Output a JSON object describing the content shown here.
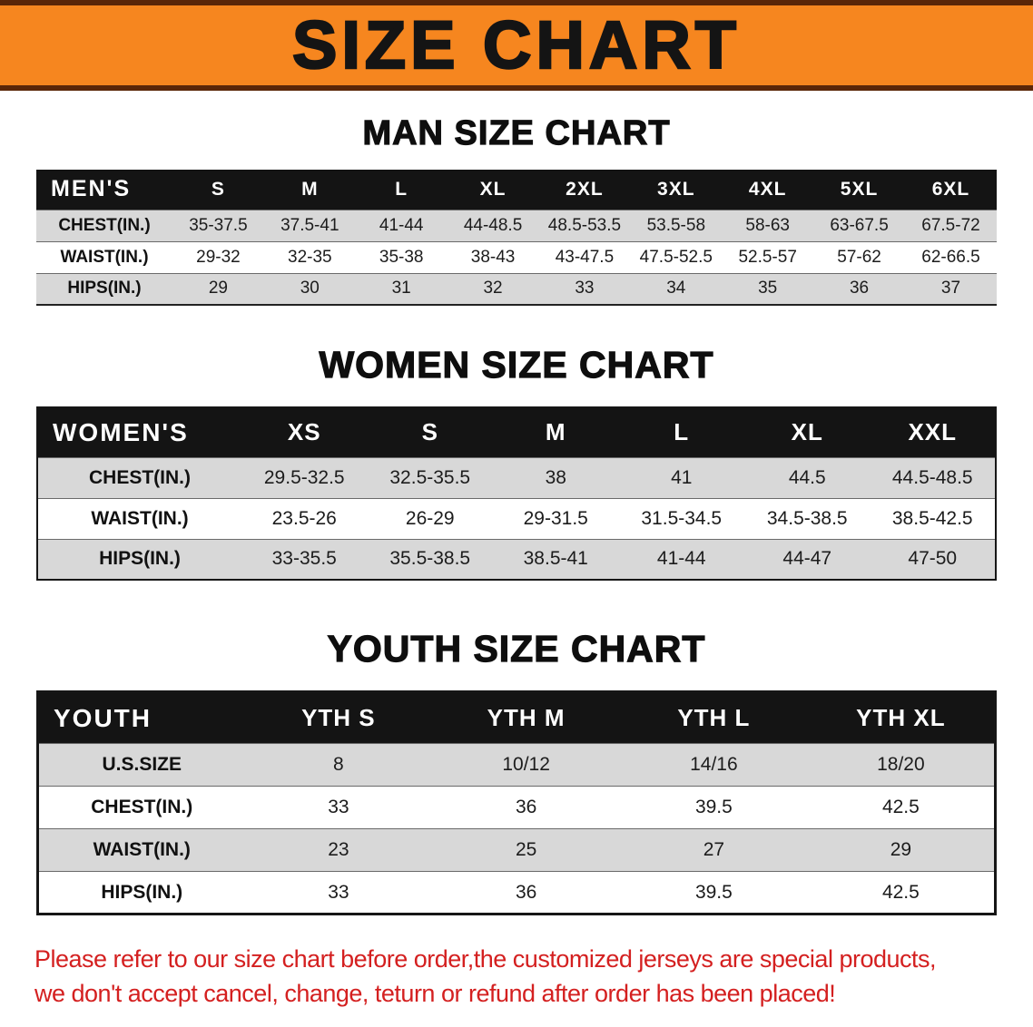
{
  "banner": {
    "title": "SIZE CHART"
  },
  "colors": {
    "banner_bg": "#f6861f",
    "banner_edge": "#5a2608",
    "header_bg": "#141414",
    "stripe": "#d8d8d8",
    "footer_red": "#d42020"
  },
  "sections": [
    {
      "name": "men",
      "heading": "MAN SIZE CHART",
      "table": {
        "header_label": "MEN'S",
        "columns": [
          "S",
          "M",
          "L",
          "XL",
          "2XL",
          "3XL",
          "4XL",
          "5XL",
          "6XL"
        ],
        "rows": [
          {
            "label": "CHEST(IN.)",
            "values": [
              "35-37.5",
              "37.5-41",
              "41-44",
              "44-48.5",
              "48.5-53.5",
              "53.5-58",
              "58-63",
              "63-67.5",
              "67.5-72"
            ]
          },
          {
            "label": "WAIST(IN.)",
            "values": [
              "29-32",
              "32-35",
              "35-38",
              "38-43",
              "43-47.5",
              "47.5-52.5",
              "52.5-57",
              "57-62",
              "62-66.5"
            ]
          },
          {
            "label": "HIPS(IN.)",
            "values": [
              "29",
              "30",
              "31",
              "32",
              "33",
              "34",
              "35",
              "36",
              "37"
            ]
          }
        ]
      }
    },
    {
      "name": "women",
      "heading": "WOMEN SIZE CHART",
      "table": {
        "header_label": "WOMEN'S",
        "columns": [
          "XS",
          "S",
          "M",
          "L",
          "XL",
          "XXL"
        ],
        "rows": [
          {
            "label": "CHEST(IN.)",
            "values": [
              "29.5-32.5",
              "32.5-35.5",
              "38",
              "41",
              "44.5",
              "44.5-48.5"
            ]
          },
          {
            "label": "WAIST(IN.)",
            "values": [
              "23.5-26",
              "26-29",
              "29-31.5",
              "31.5-34.5",
              "34.5-38.5",
              "38.5-42.5"
            ]
          },
          {
            "label": "HIPS(IN.)",
            "values": [
              "33-35.5",
              "35.5-38.5",
              "38.5-41",
              "41-44",
              "44-47",
              "47-50"
            ]
          }
        ]
      }
    },
    {
      "name": "youth",
      "heading": "YOUTH SIZE CHART",
      "table": {
        "header_label": "YOUTH",
        "columns": [
          "YTH S",
          "YTH M",
          "YTH L",
          "YTH XL"
        ],
        "rows": [
          {
            "label": "U.S.SIZE",
            "values": [
              "8",
              "10/12",
              "14/16",
              "18/20"
            ]
          },
          {
            "label": "CHEST(IN.)",
            "values": [
              "33",
              "36",
              "39.5",
              "42.5"
            ]
          },
          {
            "label": "WAIST(IN.)",
            "values": [
              "23",
              "25",
              "27",
              "29"
            ]
          },
          {
            "label": "HIPS(IN.)",
            "values": [
              "33",
              "36",
              "39.5",
              "42.5"
            ]
          }
        ]
      }
    }
  ],
  "footer": {
    "line1": "Please refer to our size chart before order,the customized jerseys are special products,",
    "line2": "we don't accept cancel, change, teturn or refund after order has been placed!"
  }
}
